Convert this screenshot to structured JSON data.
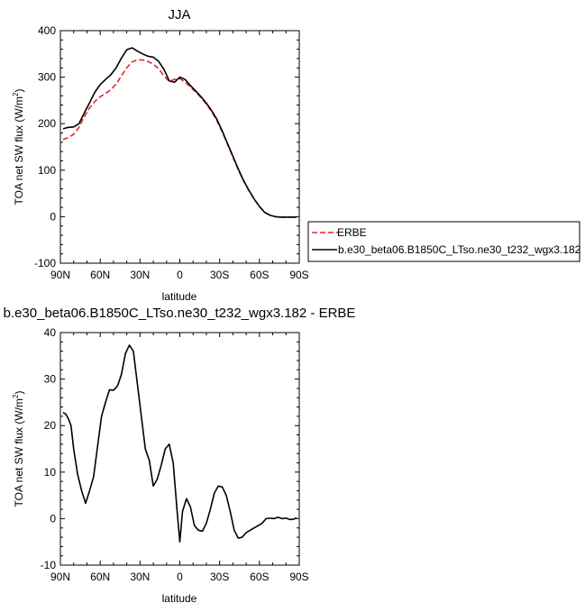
{
  "chart_data": [
    {
      "type": "line",
      "title": "JJA",
      "xlabel": "latitude",
      "ylabel": "TOA net SW flux (W/m²)",
      "ylabel_main": "TOA net SW flux (W/m",
      "ylabel_sup": "2",
      "ylabel_tail": ")",
      "xlim": [
        90,
        -90
      ],
      "ylim": [
        -100,
        400
      ],
      "x_ticks": [
        90,
        60,
        30,
        0,
        -30,
        -60,
        -90
      ],
      "x_tick_labels": [
        "90N",
        "60N",
        "30N",
        "0",
        "30S",
        "60S",
        "90S"
      ],
      "y_ticks": [
        -100,
        0,
        100,
        200,
        300,
        400
      ],
      "y_tick_labels": [
        "-100",
        "0",
        "100",
        "200",
        "300",
        "400"
      ],
      "grid": false,
      "legend_placement": "right",
      "series": [
        {
          "name": "ERBE",
          "color": "#e8252a",
          "dash": "dashed",
          "x": [
            88,
            84,
            80,
            76,
            72,
            68,
            64,
            60,
            56,
            52,
            48,
            44,
            40,
            36,
            32,
            28,
            24,
            20,
            16,
            12,
            8,
            4,
            0,
            -4,
            -8,
            -12,
            -16,
            -20,
            -24,
            -28,
            -32,
            -36,
            -40,
            -44,
            -48,
            -52,
            -56,
            -60,
            -64,
            -68,
            -72,
            -76,
            -80,
            -84,
            -88
          ],
          "values": [
            166,
            170,
            177,
            192,
            215,
            234,
            248,
            258,
            265,
            273,
            285,
            303,
            320,
            333,
            337,
            337,
            334,
            328,
            318,
            303,
            291,
            295,
            297,
            289,
            279,
            268,
            256,
            242,
            226,
            206,
            182,
            155,
            128,
            101,
            77,
            56,
            38,
            22,
            9,
            3,
            0,
            -1,
            -1,
            -1,
            -1
          ]
        },
        {
          "name": "b.e30_beta06.B1850C_LTso.ne30_t232_wgx3.182",
          "color": "#000000",
          "dash": "solid",
          "x": [
            88,
            84,
            80,
            76,
            72,
            68,
            64,
            60,
            56,
            52,
            48,
            44,
            40,
            36,
            32,
            28,
            24,
            20,
            16,
            12,
            8,
            4,
            0,
            -4,
            -8,
            -12,
            -16,
            -20,
            -24,
            -28,
            -32,
            -36,
            -40,
            -44,
            -48,
            -52,
            -56,
            -60,
            -64,
            -68,
            -72,
            -76,
            -80,
            -84,
            -88
          ],
          "values": [
            189,
            192,
            193,
            200,
            223,
            245,
            268,
            284,
            295,
            305,
            320,
            341,
            359,
            363,
            356,
            350,
            345,
            343,
            334,
            317,
            292,
            289,
            300,
            295,
            282,
            270,
            258,
            244,
            228,
            209,
            184,
            157,
            130,
            103,
            78,
            57,
            38,
            22,
            9,
            3,
            0,
            -1,
            -1,
            -1,
            -1
          ]
        }
      ]
    },
    {
      "type": "line",
      "title": "b.e30_beta06.B1850C_LTso.ne30_t232_wgx3.182 - ERBE",
      "xlabel": "latitude",
      "ylabel": "TOA net SW flux (W/m²)",
      "ylabel_main": "TOA net SW flux (W/m",
      "ylabel_sup": "2",
      "ylabel_tail": ")",
      "xlim": [
        90,
        -90
      ],
      "ylim": [
        -10,
        40
      ],
      "x_ticks": [
        90,
        60,
        30,
        0,
        -30,
        -60,
        -90
      ],
      "x_tick_labels": [
        "90N",
        "60N",
        "30N",
        "0",
        "30S",
        "60S",
        "90S"
      ],
      "y_ticks": [
        -10,
        0,
        10,
        20,
        30,
        40
      ],
      "y_tick_labels": [
        "-10",
        "0",
        "10",
        "20",
        "30",
        "40"
      ],
      "grid": false,
      "series": [
        {
          "color": "#000000",
          "dash": "solid",
          "x": [
            88,
            86,
            84,
            82,
            80,
            77,
            74,
            71,
            68,
            65,
            62,
            59,
            56,
            53,
            50,
            47,
            44,
            41,
            38,
            35,
            32,
            29,
            26,
            23,
            20,
            17,
            14,
            11,
            8,
            5,
            2,
            0,
            -2,
            -5,
            -8,
            -11,
            -14,
            -17,
            -20,
            -23,
            -26,
            -29,
            -32,
            -35,
            -38,
            -41,
            -44,
            -47,
            -50,
            -53,
            -56,
            -59,
            -62,
            -65,
            -68,
            -71,
            -74,
            -77,
            -80,
            -83,
            -86,
            -88
          ],
          "values": [
            22.8,
            22.5,
            21.5,
            20.0,
            15.0,
            9.5,
            6.0,
            3.3,
            6.0,
            9.0,
            15.5,
            22.0,
            25.0,
            27.7,
            27.6,
            28.5,
            31.0,
            35.5,
            37.3,
            36.0,
            29.0,
            22.0,
            15.0,
            12.5,
            7.0,
            8.5,
            11.5,
            15.0,
            16.0,
            12.0,
            1.5,
            -5.0,
            1.5,
            4.3,
            2.5,
            -1.5,
            -2.5,
            -2.7,
            -1.0,
            2.0,
            5.5,
            7.0,
            6.8,
            5.0,
            1.5,
            -2.5,
            -4.2,
            -4.0,
            -3.0,
            -2.5,
            -2.0,
            -1.5,
            -1.0,
            0.0,
            0.1,
            0.0,
            0.3,
            0.0,
            0.1,
            -0.2,
            -0.1,
            0.2
          ]
        }
      ]
    }
  ]
}
